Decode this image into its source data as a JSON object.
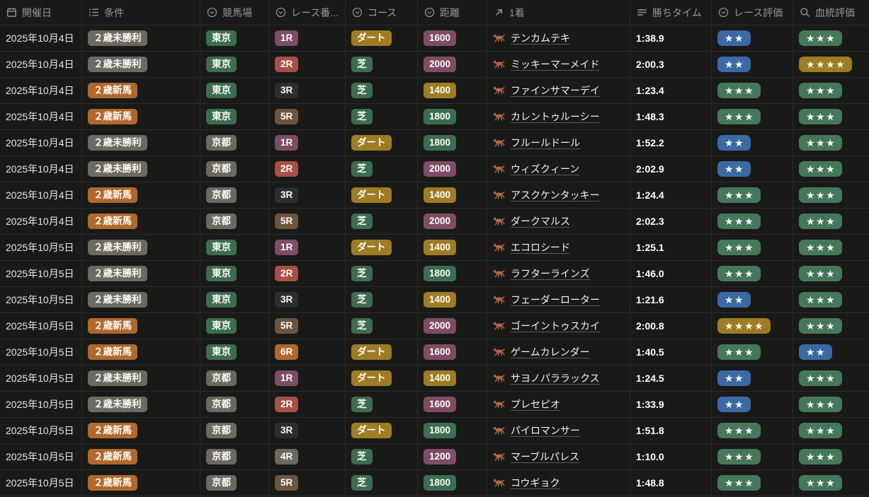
{
  "table": {
    "columns": [
      {
        "key": "date",
        "label": "開催日",
        "icon": "calendar-icon"
      },
      {
        "key": "condition",
        "label": "条件",
        "icon": "list-icon"
      },
      {
        "key": "track",
        "label": "競馬場",
        "icon": "select-icon"
      },
      {
        "key": "race_no",
        "label": "レース番...",
        "icon": "select-icon"
      },
      {
        "key": "course",
        "label": "コース",
        "icon": "select-icon"
      },
      {
        "key": "distance",
        "label": "距離",
        "icon": "select-icon"
      },
      {
        "key": "winner",
        "label": "1着",
        "icon": "arrow-up-right-icon"
      },
      {
        "key": "time",
        "label": "勝ちタイム",
        "icon": "text-lines-icon"
      },
      {
        "key": "race_rating",
        "label": "レース評価",
        "icon": "select-icon"
      },
      {
        "key": "pedigree_rating",
        "label": "血統評価",
        "icon": "search-icon"
      }
    ],
    "star_char": "★",
    "colors": {
      "background": "#191918",
      "divider": "#2c2c29",
      "header_text": "#9b988f",
      "horse_icon": "#b5654a"
    },
    "tag_colors": {
      "gray": "#6c6961",
      "orange": "#b0682c",
      "green": "#3c6d50",
      "purple": "#7e4c66",
      "red": "#a75046",
      "brown": "#6e553f",
      "gold": "#9d7c23",
      "blue": "#3b69a5",
      "dark": "#2d2d2b",
      "star_green": "#45775a"
    },
    "rows": [
      {
        "date": "2025年10月4日",
        "condition": {
          "t": "２歳未勝利",
          "c": "gray"
        },
        "track": {
          "t": "東京",
          "c": "green"
        },
        "race_no": {
          "t": "1R",
          "c": "purple"
        },
        "course": {
          "t": "ダート",
          "c": "gold"
        },
        "distance": {
          "t": "1600",
          "c": "purple"
        },
        "winner": "テンカムテキ",
        "time": "1:38.9",
        "race_rating": {
          "stars": 2,
          "c": "blue"
        },
        "pedigree_rating": {
          "stars": 3,
          "c": "star_green"
        }
      },
      {
        "date": "2025年10月4日",
        "condition": {
          "t": "２歳未勝利",
          "c": "gray"
        },
        "track": {
          "t": "東京",
          "c": "green"
        },
        "race_no": {
          "t": "2R",
          "c": "red"
        },
        "course": {
          "t": "芝",
          "c": "green"
        },
        "distance": {
          "t": "2000",
          "c": "purple"
        },
        "winner": "ミッキーマーメイド",
        "time": "2:00.3",
        "race_rating": {
          "stars": 2,
          "c": "blue"
        },
        "pedigree_rating": {
          "stars": 4,
          "c": "gold"
        }
      },
      {
        "date": "2025年10月4日",
        "condition": {
          "t": "２歳新馬",
          "c": "orange"
        },
        "track": {
          "t": "東京",
          "c": "green"
        },
        "race_no": {
          "t": "3R",
          "c": "dark"
        },
        "course": {
          "t": "芝",
          "c": "green"
        },
        "distance": {
          "t": "1400",
          "c": "gold"
        },
        "winner": "ファインサマーデイ",
        "time": "1:23.4",
        "race_rating": {
          "stars": 3,
          "c": "star_green"
        },
        "pedigree_rating": {
          "stars": 3,
          "c": "star_green"
        }
      },
      {
        "date": "2025年10月4日",
        "condition": {
          "t": "２歳新馬",
          "c": "orange"
        },
        "track": {
          "t": "東京",
          "c": "green"
        },
        "race_no": {
          "t": "5R",
          "c": "brown"
        },
        "course": {
          "t": "芝",
          "c": "green"
        },
        "distance": {
          "t": "1800",
          "c": "green"
        },
        "winner": "カレントゥルーシー",
        "time": "1:48.3",
        "race_rating": {
          "stars": 3,
          "c": "star_green"
        },
        "pedigree_rating": {
          "stars": 3,
          "c": "star_green"
        }
      },
      {
        "date": "2025年10月4日",
        "condition": {
          "t": "２歳未勝利",
          "c": "gray"
        },
        "track": {
          "t": "京都",
          "c": "gray"
        },
        "race_no": {
          "t": "1R",
          "c": "purple"
        },
        "course": {
          "t": "ダート",
          "c": "gold"
        },
        "distance": {
          "t": "1800",
          "c": "green"
        },
        "winner": "フルールドール",
        "time": "1:52.2",
        "race_rating": {
          "stars": 2,
          "c": "blue"
        },
        "pedigree_rating": {
          "stars": 3,
          "c": "star_green"
        }
      },
      {
        "date": "2025年10月4日",
        "condition": {
          "t": "２歳未勝利",
          "c": "gray"
        },
        "track": {
          "t": "京都",
          "c": "gray"
        },
        "race_no": {
          "t": "2R",
          "c": "red"
        },
        "course": {
          "t": "芝",
          "c": "green"
        },
        "distance": {
          "t": "2000",
          "c": "purple"
        },
        "winner": "ウィズクィーン",
        "time": "2:02.9",
        "race_rating": {
          "stars": 2,
          "c": "blue"
        },
        "pedigree_rating": {
          "stars": 3,
          "c": "star_green"
        }
      },
      {
        "date": "2025年10月4日",
        "condition": {
          "t": "２歳新馬",
          "c": "orange"
        },
        "track": {
          "t": "京都",
          "c": "gray"
        },
        "race_no": {
          "t": "3R",
          "c": "dark"
        },
        "course": {
          "t": "ダート",
          "c": "gold"
        },
        "distance": {
          "t": "1400",
          "c": "gold"
        },
        "winner": "アスクケンタッキー",
        "time": "1:24.4",
        "race_rating": {
          "stars": 3,
          "c": "star_green"
        },
        "pedigree_rating": {
          "stars": 3,
          "c": "star_green"
        }
      },
      {
        "date": "2025年10月4日",
        "condition": {
          "t": "２歳新馬",
          "c": "orange"
        },
        "track": {
          "t": "京都",
          "c": "gray"
        },
        "race_no": {
          "t": "5R",
          "c": "brown"
        },
        "course": {
          "t": "芝",
          "c": "green"
        },
        "distance": {
          "t": "2000",
          "c": "purple"
        },
        "winner": "ダークマルス",
        "time": "2:02.3",
        "race_rating": {
          "stars": 3,
          "c": "star_green"
        },
        "pedigree_rating": {
          "stars": 3,
          "c": "star_green"
        }
      },
      {
        "date": "2025年10月5日",
        "condition": {
          "t": "２歳未勝利",
          "c": "gray"
        },
        "track": {
          "t": "東京",
          "c": "green"
        },
        "race_no": {
          "t": "1R",
          "c": "purple"
        },
        "course": {
          "t": "ダート",
          "c": "gold"
        },
        "distance": {
          "t": "1400",
          "c": "gold"
        },
        "winner": "エコロシード",
        "time": "1:25.1",
        "race_rating": {
          "stars": 3,
          "c": "star_green"
        },
        "pedigree_rating": {
          "stars": 3,
          "c": "star_green"
        }
      },
      {
        "date": "2025年10月5日",
        "condition": {
          "t": "２歳未勝利",
          "c": "gray"
        },
        "track": {
          "t": "東京",
          "c": "green"
        },
        "race_no": {
          "t": "2R",
          "c": "red"
        },
        "course": {
          "t": "芝",
          "c": "green"
        },
        "distance": {
          "t": "1800",
          "c": "green"
        },
        "winner": "ラフターラインズ",
        "time": "1:46.0",
        "race_rating": {
          "stars": 3,
          "c": "star_green"
        },
        "pedigree_rating": {
          "stars": 3,
          "c": "star_green"
        }
      },
      {
        "date": "2025年10月5日",
        "condition": {
          "t": "２歳未勝利",
          "c": "gray"
        },
        "track": {
          "t": "東京",
          "c": "green"
        },
        "race_no": {
          "t": "3R",
          "c": "dark"
        },
        "course": {
          "t": "芝",
          "c": "green"
        },
        "distance": {
          "t": "1400",
          "c": "gold"
        },
        "winner": "フェーダーローター",
        "time": "1:21.6",
        "race_rating": {
          "stars": 2,
          "c": "blue"
        },
        "pedigree_rating": {
          "stars": 3,
          "c": "star_green"
        }
      },
      {
        "date": "2025年10月5日",
        "condition": {
          "t": "２歳新馬",
          "c": "orange"
        },
        "track": {
          "t": "東京",
          "c": "green"
        },
        "race_no": {
          "t": "5R",
          "c": "brown"
        },
        "course": {
          "t": "芝",
          "c": "green"
        },
        "distance": {
          "t": "2000",
          "c": "purple"
        },
        "winner": "ゴーイントゥスカイ",
        "time": "2:00.8",
        "race_rating": {
          "stars": 4,
          "c": "gold"
        },
        "pedigree_rating": {
          "stars": 3,
          "c": "star_green"
        }
      },
      {
        "date": "2025年10月5日",
        "condition": {
          "t": "２歳新馬",
          "c": "orange"
        },
        "track": {
          "t": "東京",
          "c": "green"
        },
        "race_no": {
          "t": "6R",
          "c": "orange"
        },
        "course": {
          "t": "ダート",
          "c": "gold"
        },
        "distance": {
          "t": "1600",
          "c": "purple"
        },
        "winner": "ゲームカレンダー",
        "time": "1:40.5",
        "race_rating": {
          "stars": 3,
          "c": "star_green"
        },
        "pedigree_rating": {
          "stars": 2,
          "c": "blue"
        }
      },
      {
        "date": "2025年10月5日",
        "condition": {
          "t": "２歳未勝利",
          "c": "gray"
        },
        "track": {
          "t": "京都",
          "c": "gray"
        },
        "race_no": {
          "t": "1R",
          "c": "purple"
        },
        "course": {
          "t": "ダート",
          "c": "gold"
        },
        "distance": {
          "t": "1400",
          "c": "gold"
        },
        "winner": "サヨノパララックス",
        "time": "1:24.5",
        "race_rating": {
          "stars": 2,
          "c": "blue"
        },
        "pedigree_rating": {
          "stars": 3,
          "c": "star_green"
        }
      },
      {
        "date": "2025年10月5日",
        "condition": {
          "t": "２歳未勝利",
          "c": "gray"
        },
        "track": {
          "t": "京都",
          "c": "gray"
        },
        "race_no": {
          "t": "2R",
          "c": "red"
        },
        "course": {
          "t": "芝",
          "c": "green"
        },
        "distance": {
          "t": "1600",
          "c": "purple"
        },
        "winner": "プレセピオ",
        "time": "1:33.9",
        "race_rating": {
          "stars": 2,
          "c": "blue"
        },
        "pedigree_rating": {
          "stars": 3,
          "c": "star_green"
        }
      },
      {
        "date": "2025年10月5日",
        "condition": {
          "t": "２歳新馬",
          "c": "orange"
        },
        "track": {
          "t": "京都",
          "c": "gray"
        },
        "race_no": {
          "t": "3R",
          "c": "dark"
        },
        "course": {
          "t": "ダート",
          "c": "gold"
        },
        "distance": {
          "t": "1800",
          "c": "green"
        },
        "winner": "パイロマンサー",
        "time": "1:51.8",
        "race_rating": {
          "stars": 3,
          "c": "star_green"
        },
        "pedigree_rating": {
          "stars": 3,
          "c": "star_green"
        }
      },
      {
        "date": "2025年10月5日",
        "condition": {
          "t": "２歳新馬",
          "c": "orange"
        },
        "track": {
          "t": "京都",
          "c": "gray"
        },
        "race_no": {
          "t": "4R",
          "c": "gray"
        },
        "course": {
          "t": "芝",
          "c": "green"
        },
        "distance": {
          "t": "1200",
          "c": "purple"
        },
        "winner": "マーブルパレス",
        "time": "1:10.0",
        "race_rating": {
          "stars": 3,
          "c": "star_green"
        },
        "pedigree_rating": {
          "stars": 3,
          "c": "star_green"
        }
      },
      {
        "date": "2025年10月5日",
        "condition": {
          "t": "２歳新馬",
          "c": "orange"
        },
        "track": {
          "t": "京都",
          "c": "gray"
        },
        "race_no": {
          "t": "5R",
          "c": "brown"
        },
        "course": {
          "t": "芝",
          "c": "green"
        },
        "distance": {
          "t": "1800",
          "c": "green"
        },
        "winner": "コウギョク",
        "time": "1:48.8",
        "race_rating": {
          "stars": 3,
          "c": "star_green"
        },
        "pedigree_rating": {
          "stars": 3,
          "c": "star_green"
        }
      }
    ]
  }
}
